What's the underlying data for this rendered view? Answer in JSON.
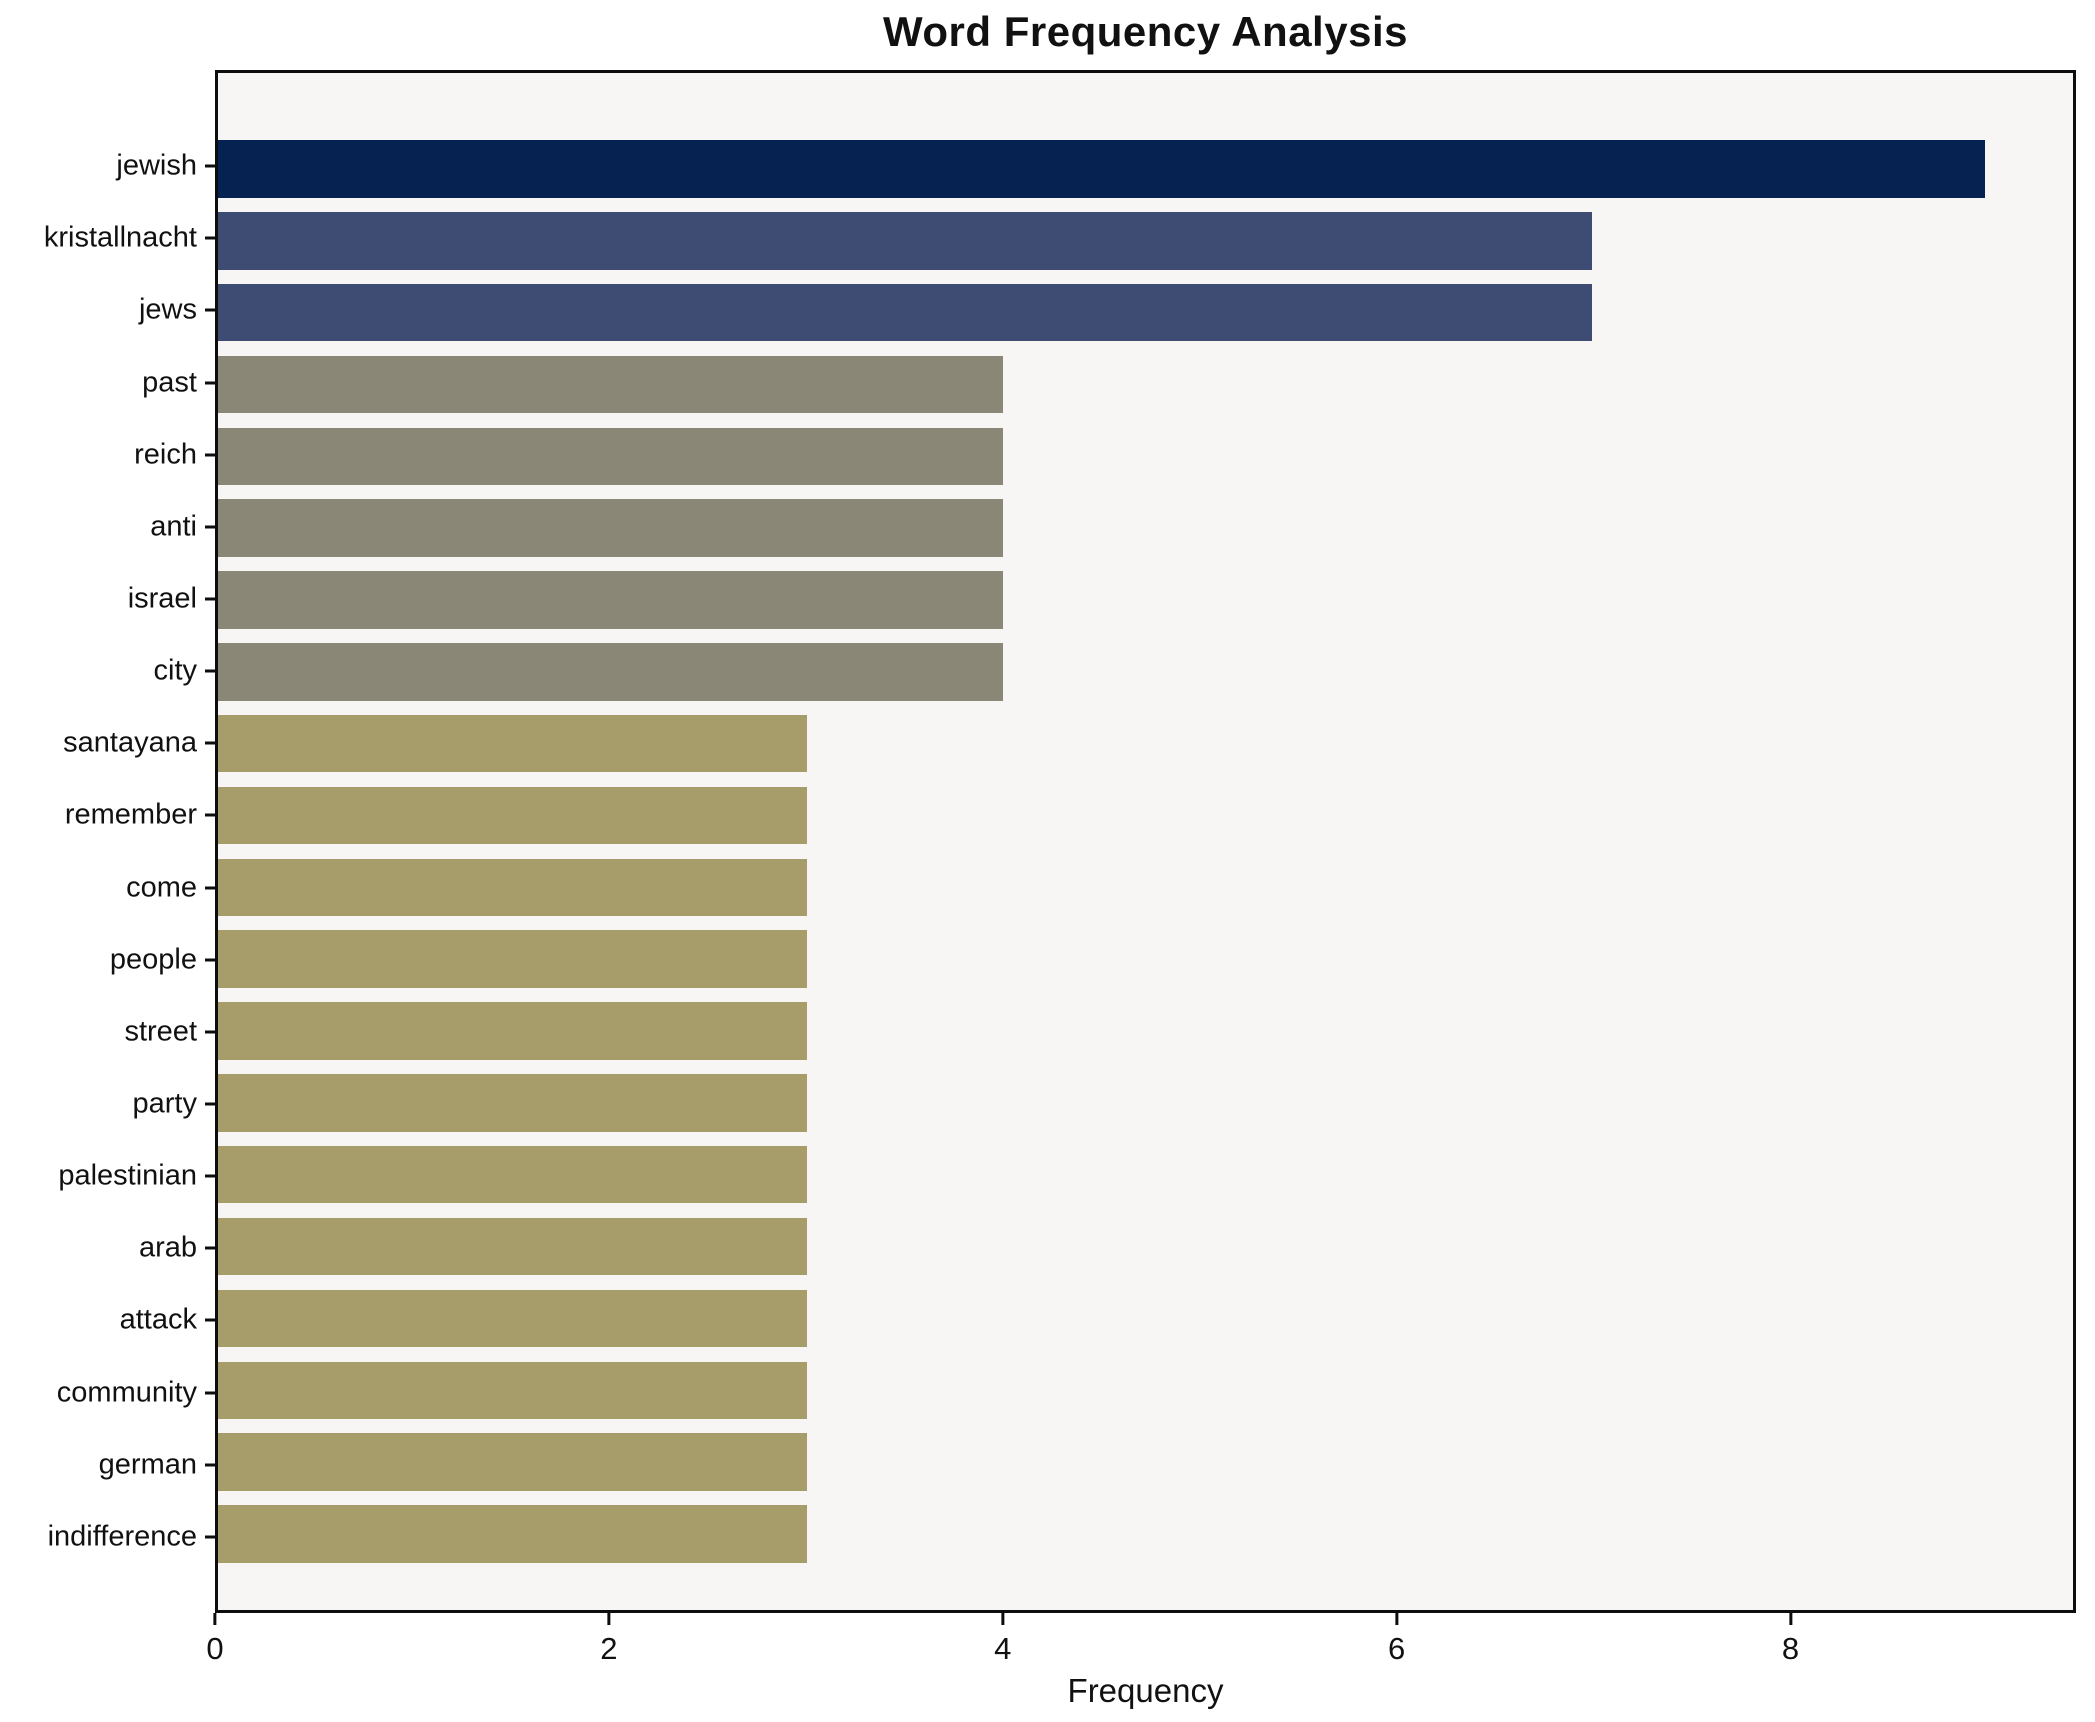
{
  "chart_data": {
    "type": "bar",
    "orientation": "horizontal",
    "title": "Word Frequency Analysis",
    "xlabel": "Frequency",
    "ylabel": "",
    "categories": [
      "jewish",
      "kristallnacht",
      "jews",
      "past",
      "reich",
      "anti",
      "israel",
      "city",
      "santayana",
      "remember",
      "come",
      "people",
      "street",
      "party",
      "palestinian",
      "arab",
      "attack",
      "community",
      "german",
      "indifference"
    ],
    "values": [
      9,
      7,
      7,
      4,
      4,
      4,
      4,
      4,
      3,
      3,
      3,
      3,
      3,
      3,
      3,
      3,
      3,
      3,
      3,
      3
    ],
    "bar_colors": [
      "#062250",
      "#3e4c73",
      "#3e4c73",
      "#8a8777",
      "#8a8777",
      "#8a8777",
      "#8a8777",
      "#8a8777",
      "#a79d6b",
      "#a79d6b",
      "#a79d6b",
      "#a79d6b",
      "#a79d6b",
      "#a79d6b",
      "#a79d6b",
      "#a79d6b",
      "#a79d6b",
      "#a79d6b",
      "#a79d6b",
      "#a79d6b"
    ],
    "xlim": [
      0,
      9.45
    ],
    "xticks": [
      0,
      2,
      4,
      6,
      8
    ],
    "grid": false,
    "legend": null,
    "colors": {
      "plot_background": "#f7f6f4",
      "figure_background": "#ffffff",
      "axis": "#0d0d0d",
      "text": "#111111"
    }
  }
}
